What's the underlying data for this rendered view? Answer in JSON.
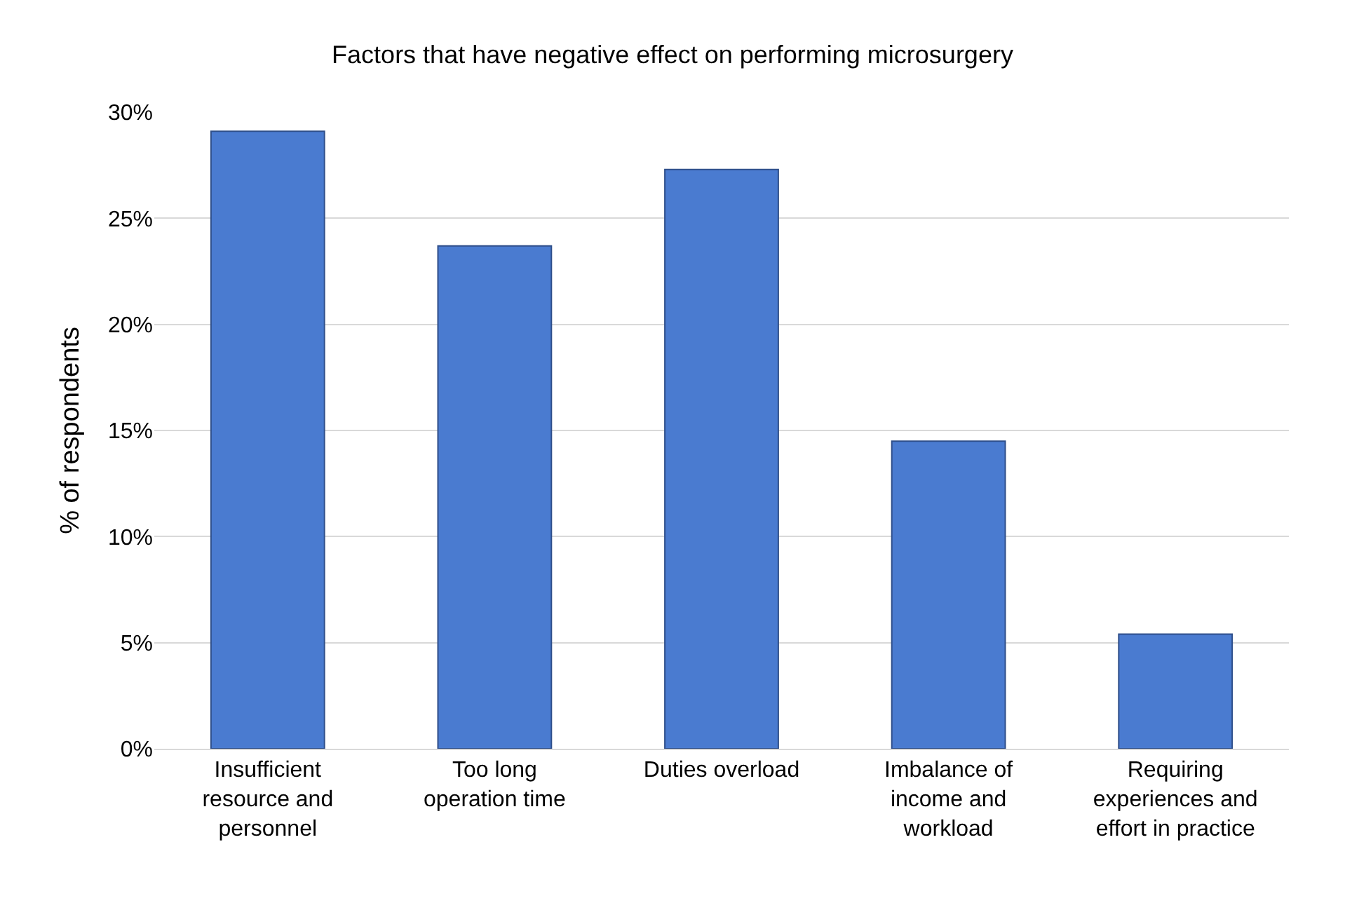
{
  "chart_data": {
    "type": "bar",
    "title": "Factors that have negative effect on performing microsurgery",
    "ylabel": "% of respondents",
    "categories": [
      "Insufficient\nresource and\npersonnel",
      "Too long\noperation time",
      "Duties overload",
      "Imbalance of\nincome and\nworkload",
      "Requiring\nexperiences and\neffort in practice"
    ],
    "values": [
      29.1,
      23.7,
      27.3,
      14.5,
      5.4
    ],
    "color": "#4a7bd0",
    "ylim": [
      0,
      30
    ],
    "yticks": [
      {
        "value": 0,
        "label": "0%"
      },
      {
        "value": 5,
        "label": "5%"
      },
      {
        "value": 10,
        "label": "10%"
      },
      {
        "value": 15,
        "label": "15%"
      },
      {
        "value": 20,
        "label": "20%"
      },
      {
        "value": 25,
        "label": "25%"
      },
      {
        "value": 30,
        "label": "30%"
      }
    ],
    "grid": "y"
  }
}
